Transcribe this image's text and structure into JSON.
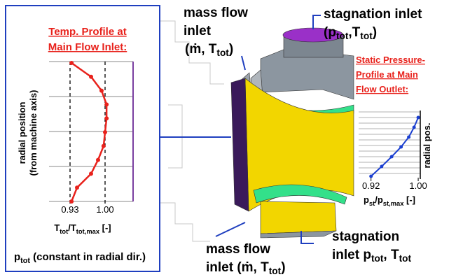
{
  "temp_profile": {
    "title": [
      "Temp. Profile at",
      "Main Flow Inlet:"
    ],
    "y_label": [
      "radial position",
      "(from machine axis)"
    ],
    "x_label": [
      "T",
      "tot",
      "/T",
      "tot,max",
      " [-]"
    ],
    "xlim": [
      0.888,
      1.056
    ],
    "xticks": [
      {
        "value": 0.93,
        "label": "0.93"
      },
      {
        "value": 1,
        "label": "1.00"
      }
    ],
    "values": [
      0.933,
      0.972,
      0.993,
      1.003,
      1.003,
      1.0,
      0.997,
      0.986,
      0.972,
      0.944,
      0.933
    ],
    "color": "#e8221c",
    "note": [
      "p",
      "tot",
      " (constant in radial dir.)"
    ]
  },
  "pressure_profile": {
    "title": [
      "Static Pressure-",
      "Profile at Main",
      "Flow Outlet:"
    ],
    "y_label": "radial pos.",
    "x_label": [
      "p",
      "st",
      "/p",
      "st,max",
      " [-]"
    ],
    "xlim": [
      0.899,
      1.0035
    ],
    "xticks": [
      {
        "value": 0.92,
        "label": "0.92"
      },
      {
        "value": 1,
        "label": "1.00"
      }
    ],
    "values": [
      0.92,
      0.938,
      0.955,
      0.971,
      0.984,
      0.993,
      1.0
    ],
    "color": "#1a3fd0"
  },
  "labels": {
    "mass_flow_top": {
      "lines": [
        "mass flow",
        "inlet"
      ],
      "formula": [
        "(ṁ, T",
        "tot",
        ")"
      ]
    },
    "stagnation_top": {
      "lines": [
        "stagnation inlet"
      ],
      "formula": [
        "(p",
        "tot",
        ",T",
        "tot",
        ")"
      ]
    },
    "stagnation_bottom": {
      "lines": [
        "stagnation"
      ],
      "formula": [
        "inlet p",
        "tot",
        ", T",
        "tot"
      ]
    },
    "mass_flow_bottom": {
      "lines": [
        "mass flow"
      ],
      "formula": [
        "inlet (ṁ, T",
        "tot",
        ")"
      ]
    }
  }
}
